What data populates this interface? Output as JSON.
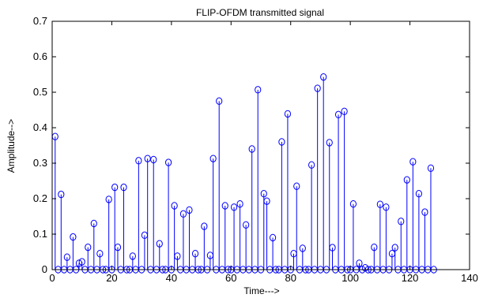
{
  "chart_data": {
    "type": "stem",
    "title": "FLIP-OFDM transmitted signal",
    "xlabel": "Time--->",
    "ylabel": "Amplitude-->",
    "xlim": [
      0,
      140
    ],
    "ylim": [
      0,
      0.7
    ],
    "xticks": [
      0,
      20,
      40,
      60,
      80,
      100,
      120,
      140
    ],
    "xtick_labels": [
      "0",
      "20",
      "40",
      "60",
      "80",
      "100",
      "120",
      "140"
    ],
    "yticks": [
      0,
      0.1,
      0.2,
      0.3,
      0.4,
      0.5,
      0.6,
      0.7
    ],
    "ytick_labels": [
      "0",
      "0.1",
      "0.2",
      "0.3",
      "0.4",
      "0.5",
      "0.6",
      "0.7"
    ],
    "grid": false,
    "series": [
      {
        "color": "#0000ff",
        "x": [
          1,
          2,
          3,
          4,
          5,
          6,
          7,
          8,
          9,
          10,
          11,
          12,
          13,
          14,
          15,
          16,
          17,
          18,
          19,
          20,
          21,
          22,
          23,
          24,
          25,
          26,
          27,
          28,
          29,
          30,
          31,
          32,
          33,
          34,
          35,
          36,
          37,
          38,
          39,
          40,
          41,
          42,
          43,
          44,
          45,
          46,
          47,
          48,
          49,
          50,
          51,
          52,
          53,
          54,
          55,
          56,
          57,
          58,
          59,
          60,
          61,
          62,
          63,
          64,
          65,
          66,
          67,
          68,
          69,
          70,
          71,
          72,
          73,
          74,
          75,
          76,
          77,
          78,
          79,
          80,
          81,
          82,
          83,
          84,
          85,
          86,
          87,
          88,
          89,
          90,
          91,
          92,
          93,
          94,
          95,
          96,
          97,
          98,
          99,
          100,
          101,
          102,
          103,
          104,
          105,
          106,
          107,
          108,
          109,
          110,
          111,
          112,
          113,
          114,
          115,
          116,
          117,
          118,
          119,
          120,
          121,
          122,
          123,
          124,
          125,
          126,
          127,
          128
        ],
        "y": [
          0.375,
          0,
          0.212,
          0,
          0.035,
          0,
          0.092,
          0,
          0.018,
          0.022,
          0,
          0.063,
          0,
          0.13,
          0,
          0.045,
          0,
          0,
          0.198,
          0,
          0.232,
          0.063,
          0,
          0.232,
          0,
          0,
          0.038,
          0,
          0.307,
          0,
          0.097,
          0.313,
          0,
          0.31,
          0,
          0.073,
          0,
          0,
          0.302,
          0,
          0.18,
          0.038,
          0,
          0.157,
          0,
          0.168,
          0,
          0.045,
          0,
          0,
          0.122,
          0,
          0.04,
          0.313,
          0,
          0.475,
          0,
          0.18,
          0,
          0,
          0.176,
          0,
          0.185,
          0,
          0.126,
          0,
          0.34,
          0,
          0.507,
          0,
          0.214,
          0.193,
          0,
          0.09,
          0,
          0,
          0.36,
          0,
          0.439,
          0,
          0.045,
          0.235,
          0,
          0.06,
          0,
          0,
          0.295,
          0,
          0.511,
          0,
          0.543,
          0,
          0.358,
          0.062,
          0,
          0.437,
          0,
          0.446,
          0,
          0,
          0.185,
          0,
          0.018,
          0,
          0.005,
          0,
          0,
          0.063,
          0,
          0.184,
          0,
          0.176,
          0,
          0.045,
          0.062,
          0,
          0.136,
          0,
          0.253,
          0,
          0.304,
          0,
          0.214,
          0,
          0.162,
          0,
          0.286,
          0
        ]
      }
    ]
  }
}
